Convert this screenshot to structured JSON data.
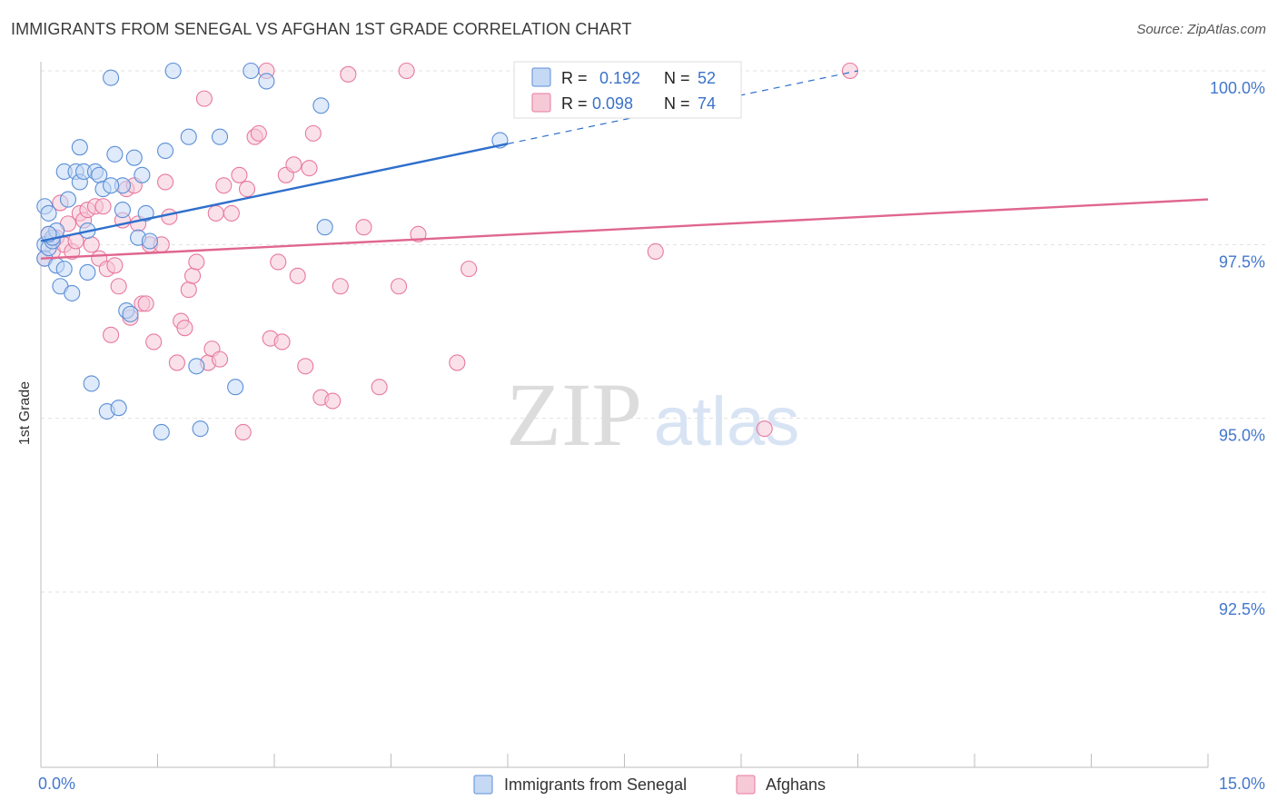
{
  "title": "IMMIGRANTS FROM SENEGAL VS AFGHAN 1ST GRADE CORRELATION CHART",
  "source": "Source: ZipAtlas.com",
  "watermark": {
    "zip": "ZIP",
    "atlas": "atlas"
  },
  "colors": {
    "blue": "#5b8fd6",
    "blue_fill": "#c5d9f5",
    "blue_line": "#2f6fcc",
    "pink": "#e8799e",
    "pink_fill": "#f6c9d7",
    "pink_line": "#e0668f",
    "axis_text": "#4477cc",
    "grid": "#e1e1e1"
  },
  "legend": [
    {
      "r_label": "R =",
      "r_value": "0.192",
      "n_label": "N =",
      "n_value": "52"
    },
    {
      "r_label": "R =",
      "r_value": "0.098",
      "n_label": "N =",
      "n_value": "74"
    }
  ],
  "chart_data": {
    "type": "scatter",
    "title": "IMMIGRANTS FROM SENEGAL VS AFGHAN 1ST GRADE CORRELATION CHART",
    "xlabel": "",
    "ylabel": "1st Grade",
    "xlim": [
      0,
      15
    ],
    "ylim": [
      90.0,
      100.3
    ],
    "x_tick_labels": [
      "0.0%",
      "15.0%"
    ],
    "y_ticks": [
      92.5,
      95.0,
      97.5,
      100.0
    ],
    "y_tick_labels": [
      "92.5%",
      "95.0%",
      "97.5%",
      "100.0%"
    ],
    "grid": true,
    "legend_position": "top-center",
    "series": [
      {
        "name": "Immigrants from Senegal",
        "color": "blue",
        "trend": {
          "x0": 0.0,
          "y0": 97.55,
          "x1": 6.0,
          "y1": 98.95,
          "dash_to_x": 10.5,
          "dash_to_y": 100.0
        },
        "points": [
          [
            0.05,
            98.05
          ],
          [
            0.1,
            97.95
          ],
          [
            0.05,
            97.5
          ],
          [
            0.05,
            97.3
          ],
          [
            0.1,
            97.45
          ],
          [
            0.15,
            97.55
          ],
          [
            0.15,
            97.6
          ],
          [
            0.2,
            97.2
          ],
          [
            0.2,
            97.7
          ],
          [
            0.25,
            96.9
          ],
          [
            0.3,
            97.15
          ],
          [
            0.3,
            98.55
          ],
          [
            0.35,
            98.15
          ],
          [
            0.4,
            96.8
          ],
          [
            0.45,
            98.55
          ],
          [
            0.5,
            98.4
          ],
          [
            0.5,
            98.9
          ],
          [
            0.55,
            98.55
          ],
          [
            0.6,
            97.7
          ],
          [
            0.6,
            97.1
          ],
          [
            0.65,
            95.5
          ],
          [
            0.7,
            98.55
          ],
          [
            0.75,
            98.5
          ],
          [
            0.8,
            98.3
          ],
          [
            0.85,
            95.1
          ],
          [
            0.9,
            99.9
          ],
          [
            0.95,
            98.8
          ],
          [
            1.0,
            95.15
          ],
          [
            1.05,
            98.0
          ],
          [
            1.05,
            98.35
          ],
          [
            1.1,
            96.55
          ],
          [
            1.15,
            96.5
          ],
          [
            1.2,
            98.75
          ],
          [
            1.25,
            97.6
          ],
          [
            1.3,
            98.5
          ],
          [
            1.35,
            97.95
          ],
          [
            1.55,
            94.8
          ],
          [
            1.6,
            98.85
          ],
          [
            1.7,
            100.0
          ],
          [
            1.9,
            99.05
          ],
          [
            2.0,
            95.75
          ],
          [
            2.05,
            94.85
          ],
          [
            2.3,
            99.05
          ],
          [
            2.5,
            95.45
          ],
          [
            2.7,
            100.0
          ],
          [
            2.9,
            99.85
          ],
          [
            3.6,
            99.5
          ],
          [
            3.65,
            97.75
          ],
          [
            5.9,
            99.0
          ],
          [
            0.9,
            98.35
          ],
          [
            1.4,
            97.55
          ],
          [
            0.1,
            97.65
          ]
        ]
      },
      {
        "name": "Afghans",
        "color": "pink",
        "trend": {
          "x0": 0.0,
          "y0": 97.3,
          "x1": 15.0,
          "y1": 98.15
        },
        "points": [
          [
            0.05,
            97.3
          ],
          [
            0.1,
            97.65
          ],
          [
            0.15,
            97.4
          ],
          [
            0.2,
            97.6
          ],
          [
            0.25,
            98.1
          ],
          [
            0.3,
            97.5
          ],
          [
            0.35,
            97.8
          ],
          [
            0.4,
            97.4
          ],
          [
            0.45,
            97.55
          ],
          [
            0.5,
            97.95
          ],
          [
            0.55,
            97.85
          ],
          [
            0.6,
            98.0
          ],
          [
            0.65,
            97.5
          ],
          [
            0.7,
            98.05
          ],
          [
            0.75,
            97.3
          ],
          [
            0.8,
            98.05
          ],
          [
            0.85,
            97.15
          ],
          [
            0.9,
            96.2
          ],
          [
            0.95,
            97.2
          ],
          [
            1.0,
            96.9
          ],
          [
            1.05,
            97.85
          ],
          [
            1.1,
            98.3
          ],
          [
            1.15,
            96.45
          ],
          [
            1.2,
            98.35
          ],
          [
            1.25,
            97.8
          ],
          [
            1.3,
            96.65
          ],
          [
            1.35,
            96.65
          ],
          [
            1.4,
            97.5
          ],
          [
            1.45,
            96.1
          ],
          [
            1.55,
            97.5
          ],
          [
            1.6,
            98.4
          ],
          [
            1.65,
            97.9
          ],
          [
            1.75,
            95.8
          ],
          [
            1.8,
            96.4
          ],
          [
            1.85,
            96.3
          ],
          [
            1.9,
            96.85
          ],
          [
            1.95,
            97.05
          ],
          [
            2.0,
            97.25
          ],
          [
            2.1,
            99.6
          ],
          [
            2.15,
            95.8
          ],
          [
            2.2,
            96.0
          ],
          [
            2.25,
            97.95
          ],
          [
            2.3,
            95.85
          ],
          [
            2.35,
            98.35
          ],
          [
            2.45,
            97.95
          ],
          [
            2.55,
            98.5
          ],
          [
            2.6,
            94.8
          ],
          [
            2.65,
            98.3
          ],
          [
            2.75,
            99.05
          ],
          [
            2.8,
            99.1
          ],
          [
            2.95,
            96.15
          ],
          [
            3.05,
            97.25
          ],
          [
            3.1,
            96.1
          ],
          [
            3.15,
            98.5
          ],
          [
            3.25,
            98.65
          ],
          [
            3.3,
            97.05
          ],
          [
            3.4,
            95.75
          ],
          [
            3.45,
            98.6
          ],
          [
            3.5,
            99.1
          ],
          [
            3.6,
            95.3
          ],
          [
            3.75,
            95.25
          ],
          [
            3.85,
            96.9
          ],
          [
            3.95,
            99.95
          ],
          [
            4.15,
            97.75
          ],
          [
            4.35,
            95.45
          ],
          [
            4.6,
            96.9
          ],
          [
            4.7,
            100.0
          ],
          [
            4.85,
            97.65
          ],
          [
            5.35,
            95.8
          ],
          [
            5.5,
            97.15
          ],
          [
            7.9,
            97.4
          ],
          [
            9.3,
            94.85
          ],
          [
            10.4,
            100.0
          ],
          [
            2.9,
            100.0
          ]
        ]
      }
    ]
  }
}
